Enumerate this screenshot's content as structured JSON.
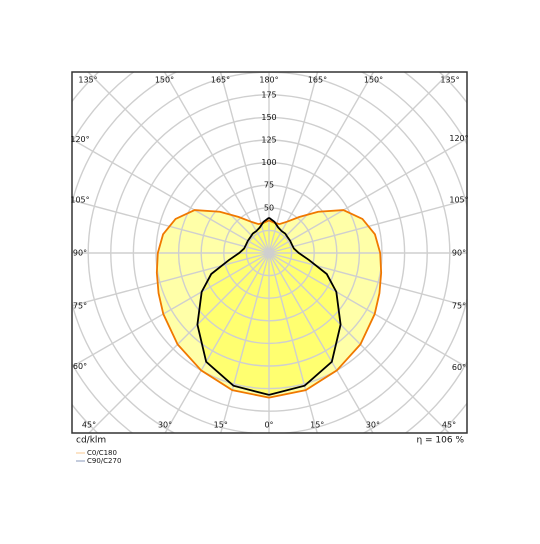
{
  "chart_data": {
    "type": "polar",
    "angles": [
      0,
      15,
      30,
      45,
      60,
      70,
      80,
      90,
      100,
      110,
      120,
      130,
      140,
      150,
      160,
      170,
      180
    ],
    "series": [
      {
        "name": "C0/C180",
        "color": "#f07800",
        "fill": "#ffffa8",
        "legend_color": "#f8c890",
        "values": [
          160,
          157,
          150,
          143,
          135,
          130,
          126,
          123,
          119,
          110,
          95,
          71,
          52,
          40,
          34,
          34,
          36
        ]
      },
      {
        "name": "C90/C270",
        "color": "#000000",
        "fill": "#ffff70",
        "legend_color": "#8899bb",
        "values": [
          157,
          152,
          139,
          112,
          86,
          68,
          45,
          33,
          28,
          27,
          27,
          27,
          28,
          28,
          30,
          35,
          39
        ]
      }
    ],
    "rlim": [
      0,
      300
    ],
    "rticks": [
      50,
      75,
      100,
      125,
      150,
      175
    ],
    "left_angle_ticks": [
      {
        "value": 45,
        "label": "45°"
      },
      {
        "value": 30,
        "label": "30°"
      },
      {
        "value": 15,
        "label": "15°"
      },
      {
        "value": 0,
        "label": "0°"
      },
      {
        "value": 60,
        "label": "60°"
      },
      {
        "value": 75,
        "label": "75°"
      },
      {
        "value": 90,
        "label": "90°"
      },
      {
        "value": 105,
        "label": "105°"
      },
      {
        "value": 120,
        "label": "120°"
      },
      {
        "value": 135,
        "label": "135°"
      },
      {
        "value": 150,
        "label": "150°"
      },
      {
        "value": 165,
        "label": "165°"
      },
      {
        "value": 180,
        "label": "180°"
      }
    ],
    "right_angle_ticks": [
      {
        "value": 45,
        "label": "45°"
      },
      {
        "value": 30,
        "label": "30°"
      },
      {
        "value": 15,
        "label": "15°"
      },
      {
        "value": 60,
        "label": "60°"
      },
      {
        "value": 75,
        "label": "75°"
      },
      {
        "value": 90,
        "label": "90°"
      },
      {
        "value": 105,
        "label": "105°"
      },
      {
        "value": 120,
        "label": "120°"
      },
      {
        "value": 135,
        "label": "135°"
      },
      {
        "value": 150,
        "label": "150°"
      },
      {
        "value": 165,
        "label": "165°"
      }
    ],
    "unit_label": "cd/klm",
    "efficiency_label": "η = 106 %",
    "grid": true
  }
}
